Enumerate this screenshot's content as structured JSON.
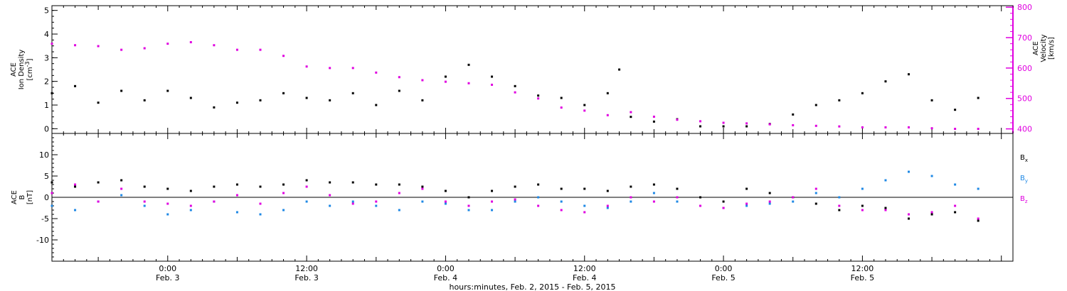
{
  "chart_data": [
    {
      "type": "scatter",
      "panel": "top",
      "x_range_hours": [
        -10,
        73
      ],
      "left_axis": {
        "label_lines": [
          "ACE",
          "Ion Density"
        ],
        "unit": "[cm",
        "unit_sup": "-3",
        "unit_close": "]",
        "ylim": [
          -0.2,
          5.2
        ],
        "ticks": [
          "0",
          "1",
          "2",
          "3",
          "4",
          "5"
        ]
      },
      "right_axis": {
        "label_lines": [
          "ACE",
          "Velocity",
          "[km/s]"
        ],
        "ylim": [
          385,
          805
        ],
        "ticks": [
          "400",
          "500",
          "600",
          "700",
          "800"
        ],
        "color": "#e000e0"
      },
      "series": [
        {
          "color": "#000000",
          "axis": "left",
          "points": [
            [
              -10,
              1.5
            ],
            [
              -8,
              1.8
            ],
            [
              -6,
              1.1
            ],
            [
              -4,
              1.6
            ],
            [
              -2,
              1.2
            ],
            [
              0,
              1.6
            ],
            [
              2,
              1.3
            ],
            [
              4,
              0.9
            ],
            [
              6,
              1.1
            ],
            [
              8,
              1.2
            ],
            [
              10,
              1.5
            ],
            [
              12,
              1.3
            ],
            [
              14,
              1.2
            ],
            [
              16,
              1.5
            ],
            [
              18,
              1.0
            ],
            [
              20,
              1.6
            ],
            [
              22,
              1.2
            ],
            [
              24,
              2.2
            ],
            [
              26,
              2.7
            ],
            [
              28,
              2.2
            ],
            [
              30,
              1.8
            ],
            [
              32,
              1.4
            ],
            [
              34,
              1.3
            ],
            [
              36,
              1.0
            ],
            [
              38,
              1.5
            ],
            [
              39,
              2.5
            ],
            [
              40,
              0.5
            ],
            [
              42,
              0.3
            ],
            [
              44,
              0.4
            ],
            [
              46,
              0.1
            ],
            [
              48,
              0.1
            ],
            [
              50,
              0.1
            ],
            [
              52,
              0.2
            ],
            [
              54,
              0.6
            ],
            [
              56,
              1.0
            ],
            [
              58,
              1.2
            ],
            [
              60,
              1.5
            ],
            [
              62,
              2.0
            ],
            [
              64,
              2.3
            ],
            [
              66,
              1.2
            ],
            [
              68,
              0.8
            ],
            [
              70,
              1.3
            ]
          ]
        },
        {
          "color": "#e000e0",
          "axis": "right",
          "points": [
            [
              -10,
              680
            ],
            [
              -8,
              675
            ],
            [
              -6,
              672
            ],
            [
              -4,
              660
            ],
            [
              -2,
              665
            ],
            [
              0,
              680
            ],
            [
              2,
              685
            ],
            [
              4,
              675
            ],
            [
              6,
              660
            ],
            [
              8,
              660
            ],
            [
              10,
              640
            ],
            [
              12,
              605
            ],
            [
              14,
              600
            ],
            [
              16,
              600
            ],
            [
              18,
              585
            ],
            [
              20,
              570
            ],
            [
              22,
              560
            ],
            [
              24,
              555
            ],
            [
              26,
              550
            ],
            [
              28,
              545
            ],
            [
              30,
              520
            ],
            [
              32,
              500
            ],
            [
              34,
              470
            ],
            [
              36,
              460
            ],
            [
              38,
              445
            ],
            [
              40,
              455
            ],
            [
              42,
              440
            ],
            [
              44,
              430
            ],
            [
              46,
              425
            ],
            [
              48,
              420
            ],
            [
              50,
              418
            ],
            [
              52,
              415
            ],
            [
              54,
              412
            ],
            [
              56,
              410
            ],
            [
              58,
              408
            ],
            [
              60,
              405
            ],
            [
              62,
              405
            ],
            [
              64,
              405
            ],
            [
              66,
              402
            ],
            [
              68,
              400
            ],
            [
              70,
              400
            ]
          ]
        }
      ]
    },
    {
      "type": "scatter",
      "panel": "bottom",
      "x_range_hours": [
        -10,
        73
      ],
      "left_axis": {
        "label_lines": [
          "ACE",
          "B",
          "[nT]"
        ],
        "ylim": [
          -15,
          15
        ],
        "ticks": [
          "-10",
          "-5",
          "0",
          "5",
          "10"
        ]
      },
      "xaxis": {
        "tick_hours": [
          0,
          12,
          24,
          36,
          48,
          60
        ],
        "tick_labels": [
          [
            "0:00",
            "Feb. 3"
          ],
          [
            "12:00",
            "Feb. 3"
          ],
          [
            "0:00",
            "Feb. 4"
          ],
          [
            "12:00",
            "Feb. 4"
          ],
          [
            "0:00",
            "Feb. 5"
          ],
          [
            "12:00",
            "Feb. 5"
          ]
        ],
        "title": "hours:minutes, Feb.  2, 2015 - Feb.  5, 2015"
      },
      "legend": [
        {
          "text": "B",
          "sub": "x",
          "color": "#000000"
        },
        {
          "text": "B",
          "sub": "y",
          "color": "#1e88e5"
        },
        {
          "text": "B",
          "sub": "z",
          "color": "#e000e0"
        }
      ],
      "series": [
        {
          "name": "Bx",
          "color": "#000000",
          "points": [
            [
              -10,
              3.5
            ],
            [
              -8,
              2.5
            ],
            [
              -6,
              3.5
            ],
            [
              -4,
              4.0
            ],
            [
              -2,
              2.5
            ],
            [
              0,
              2.0
            ],
            [
              2,
              1.5
            ],
            [
              4,
              2.5
            ],
            [
              6,
              3.0
            ],
            [
              8,
              2.5
            ],
            [
              10,
              3.0
            ],
            [
              12,
              4.0
            ],
            [
              14,
              3.5
            ],
            [
              16,
              3.5
            ],
            [
              18,
              3.0
            ],
            [
              20,
              3.0
            ],
            [
              22,
              2.5
            ],
            [
              24,
              1.5
            ],
            [
              26,
              0.0
            ],
            [
              28,
              1.5
            ],
            [
              30,
              2.5
            ],
            [
              32,
              3.0
            ],
            [
              34,
              2.0
            ],
            [
              36,
              2.0
            ],
            [
              38,
              1.5
            ],
            [
              40,
              2.5
            ],
            [
              42,
              3.0
            ],
            [
              44,
              2.0
            ],
            [
              46,
              0.0
            ],
            [
              48,
              -1.0
            ],
            [
              50,
              2.0
            ],
            [
              52,
              1.0
            ],
            [
              54,
              0.0
            ],
            [
              56,
              -1.5
            ],
            [
              58,
              -3.0
            ],
            [
              60,
              -2.0
            ],
            [
              62,
              -2.5
            ],
            [
              64,
              -5.0
            ],
            [
              66,
              -4.0
            ],
            [
              68,
              -3.5
            ],
            [
              70,
              -5.5
            ]
          ]
        },
        {
          "name": "By",
          "color": "#1e88e5",
          "points": [
            [
              -10,
              -2.0
            ],
            [
              -8,
              -3.0
            ],
            [
              -6,
              -1.0
            ],
            [
              -4,
              0.5
            ],
            [
              -2,
              -2.0
            ],
            [
              0,
              -4.0
            ],
            [
              2,
              -3.0
            ],
            [
              4,
              -1.0
            ],
            [
              6,
              -3.5
            ],
            [
              8,
              -4.0
            ],
            [
              10,
              -3.0
            ],
            [
              12,
              -1.0
            ],
            [
              14,
              -2.0
            ],
            [
              16,
              -1.0
            ],
            [
              18,
              -2.0
            ],
            [
              20,
              -3.0
            ],
            [
              22,
              -1.0
            ],
            [
              24,
              -1.5
            ],
            [
              26,
              -3.0
            ],
            [
              28,
              -3.0
            ],
            [
              30,
              -1.0
            ],
            [
              32,
              0.0
            ],
            [
              34,
              -1.0
            ],
            [
              36,
              -2.0
            ],
            [
              38,
              -2.5
            ],
            [
              40,
              -1.0
            ],
            [
              42,
              1.0
            ],
            [
              44,
              -1.0
            ],
            [
              46,
              -2.0
            ],
            [
              48,
              -2.5
            ],
            [
              50,
              -2.0
            ],
            [
              52,
              -1.5
            ],
            [
              54,
              -1.0
            ],
            [
              56,
              1.0
            ],
            [
              58,
              0.0
            ],
            [
              60,
              2.0
            ],
            [
              62,
              4.0
            ],
            [
              64,
              6.0
            ],
            [
              66,
              5.0
            ],
            [
              68,
              3.0
            ],
            [
              70,
              2.0
            ]
          ]
        },
        {
          "name": "Bz",
          "color": "#e000e0",
          "points": [
            [
              -10,
              1.0
            ],
            [
              -8,
              3.0
            ],
            [
              -6,
              -1.0
            ],
            [
              -4,
              2.0
            ],
            [
              -2,
              -1.0
            ],
            [
              0,
              -1.5
            ],
            [
              2,
              -2.0
            ],
            [
              4,
              -1.0
            ],
            [
              6,
              0.5
            ],
            [
              8,
              -1.5
            ],
            [
              10,
              1.0
            ],
            [
              12,
              2.5
            ],
            [
              14,
              0.5
            ],
            [
              16,
              -1.5
            ],
            [
              18,
              -1.0
            ],
            [
              20,
              1.0
            ],
            [
              22,
              2.0
            ],
            [
              24,
              -1.0
            ],
            [
              26,
              -2.0
            ],
            [
              28,
              -1.0
            ],
            [
              30,
              -0.5
            ],
            [
              32,
              -2.0
            ],
            [
              34,
              -3.0
            ],
            [
              36,
              -3.5
            ],
            [
              38,
              -2.0
            ],
            [
              40,
              0.0
            ],
            [
              42,
              -1.0
            ],
            [
              44,
              0.0
            ],
            [
              46,
              -2.0
            ],
            [
              48,
              -2.5
            ],
            [
              50,
              -1.5
            ],
            [
              52,
              -1.0
            ],
            [
              54,
              0.0
            ],
            [
              56,
              2.0
            ],
            [
              58,
              -2.0
            ],
            [
              60,
              -3.0
            ],
            [
              62,
              -3.0
            ],
            [
              64,
              -4.0
            ],
            [
              66,
              -3.5
            ],
            [
              68,
              -2.0
            ],
            [
              70,
              -5.0
            ]
          ]
        }
      ]
    }
  ]
}
